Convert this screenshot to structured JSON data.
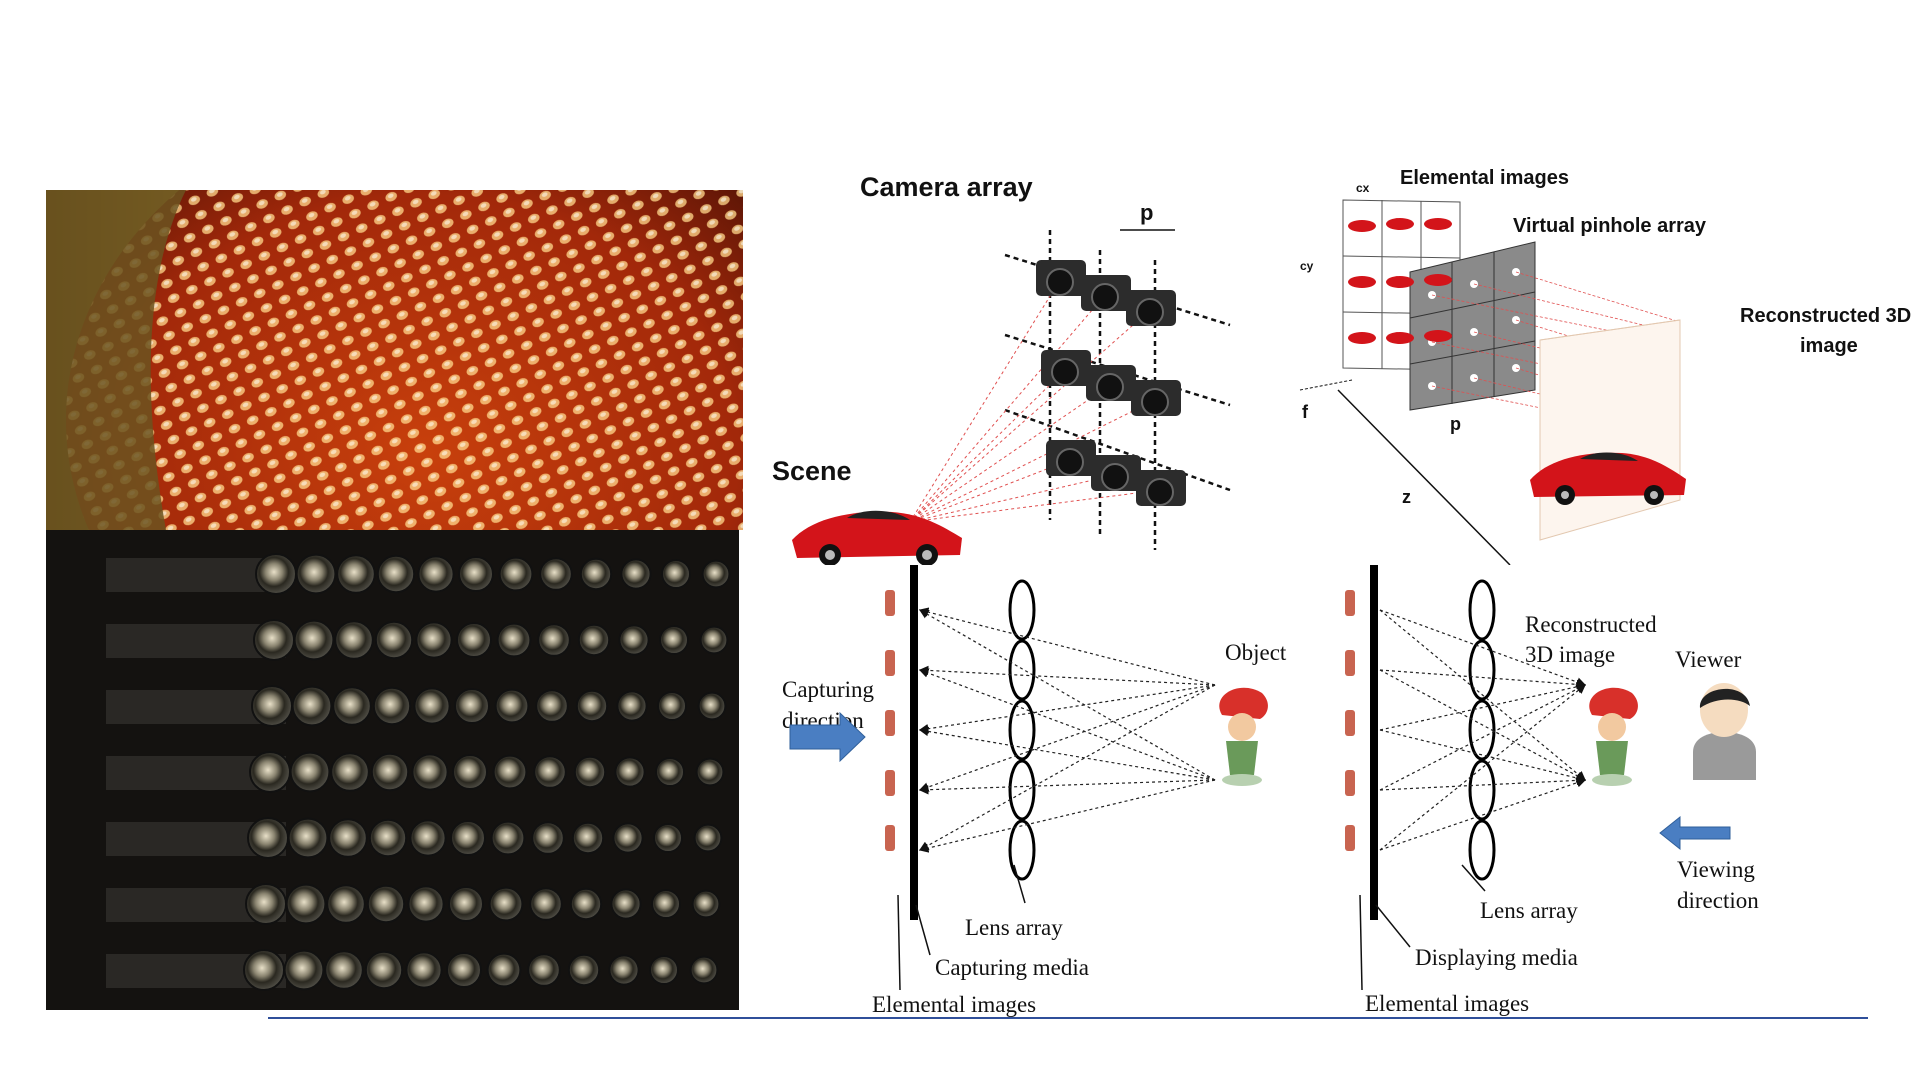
{
  "top_left": {
    "title": "Camera array",
    "scene_label": "Scene",
    "pitch_label": "p"
  },
  "top_right": {
    "elemental_label": "Elemental images",
    "pinhole_label": "Virtual pinhole array",
    "recon_line1": "Reconstructed 3D",
    "recon_line2": "image",
    "cx_label": "cx",
    "cy_label": "cy",
    "f_label": "f",
    "p_label": "p",
    "z_label": "z"
  },
  "capture": {
    "direction_line1": "Capturing",
    "direction_line2": "direction",
    "object_label": "Object",
    "lens_array_label": "Lens array",
    "media_label": "Capturing media",
    "elemental_label": "Elemental images"
  },
  "display": {
    "recon_line1": "Reconstructed",
    "recon_line2": "3D image",
    "viewer_label": "Viewer",
    "viewing_line1": "Viewing",
    "viewing_line2": "direction",
    "lens_array_label": "Lens array",
    "media_label": "Displaying media",
    "elemental_label": "Elemental images"
  },
  "colors": {
    "arrow_blue": "#4a7ec2",
    "car_red": "#d3141a",
    "ray_red": "#e05050",
    "rule_blue": "#2f4f9a"
  }
}
